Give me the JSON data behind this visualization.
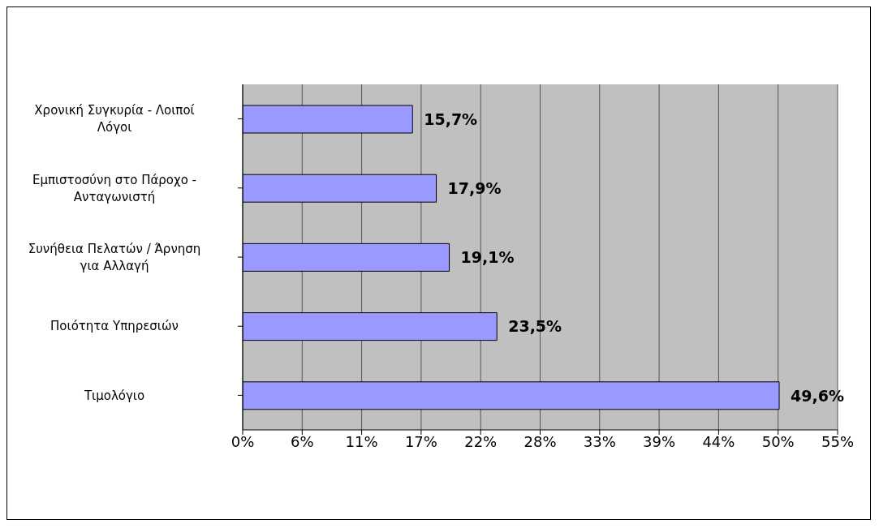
{
  "chart_data": {
    "type": "bar",
    "orientation": "horizontal",
    "categories": [
      "Χρονική Συγκυρία - Λοιποί Λόγοι",
      "Εμπιστοσύνη στο Πάροχο - Ανταγωνιστή",
      "Συνήθεια Πελατών / Άρνηση για Αλλαγή",
      "Ποιότητα Υπηρεσιών",
      "Τιμολόγιο"
    ],
    "values": [
      15.7,
      17.9,
      19.1,
      23.5,
      49.6
    ],
    "value_labels": [
      "15,7%",
      "17,9%",
      "19,1%",
      "23,5%",
      "49,6%"
    ],
    "color": "#9999ff",
    "xlim": [
      0,
      55
    ],
    "xticks": [
      {
        "value": 0,
        "label": "0%"
      },
      {
        "value": 5.5,
        "label": "6%"
      },
      {
        "value": 11,
        "label": "11%"
      },
      {
        "value": 16.5,
        "label": "17%"
      },
      {
        "value": 22,
        "label": "22%"
      },
      {
        "value": 27.5,
        "label": "28%"
      },
      {
        "value": 33,
        "label": "33%"
      },
      {
        "value": 38.5,
        "label": "39%"
      },
      {
        "value": 44,
        "label": "44%"
      },
      {
        "value": 49.5,
        "label": "50%"
      },
      {
        "value": 55,
        "label": "55%"
      }
    ],
    "grid": "x"
  }
}
